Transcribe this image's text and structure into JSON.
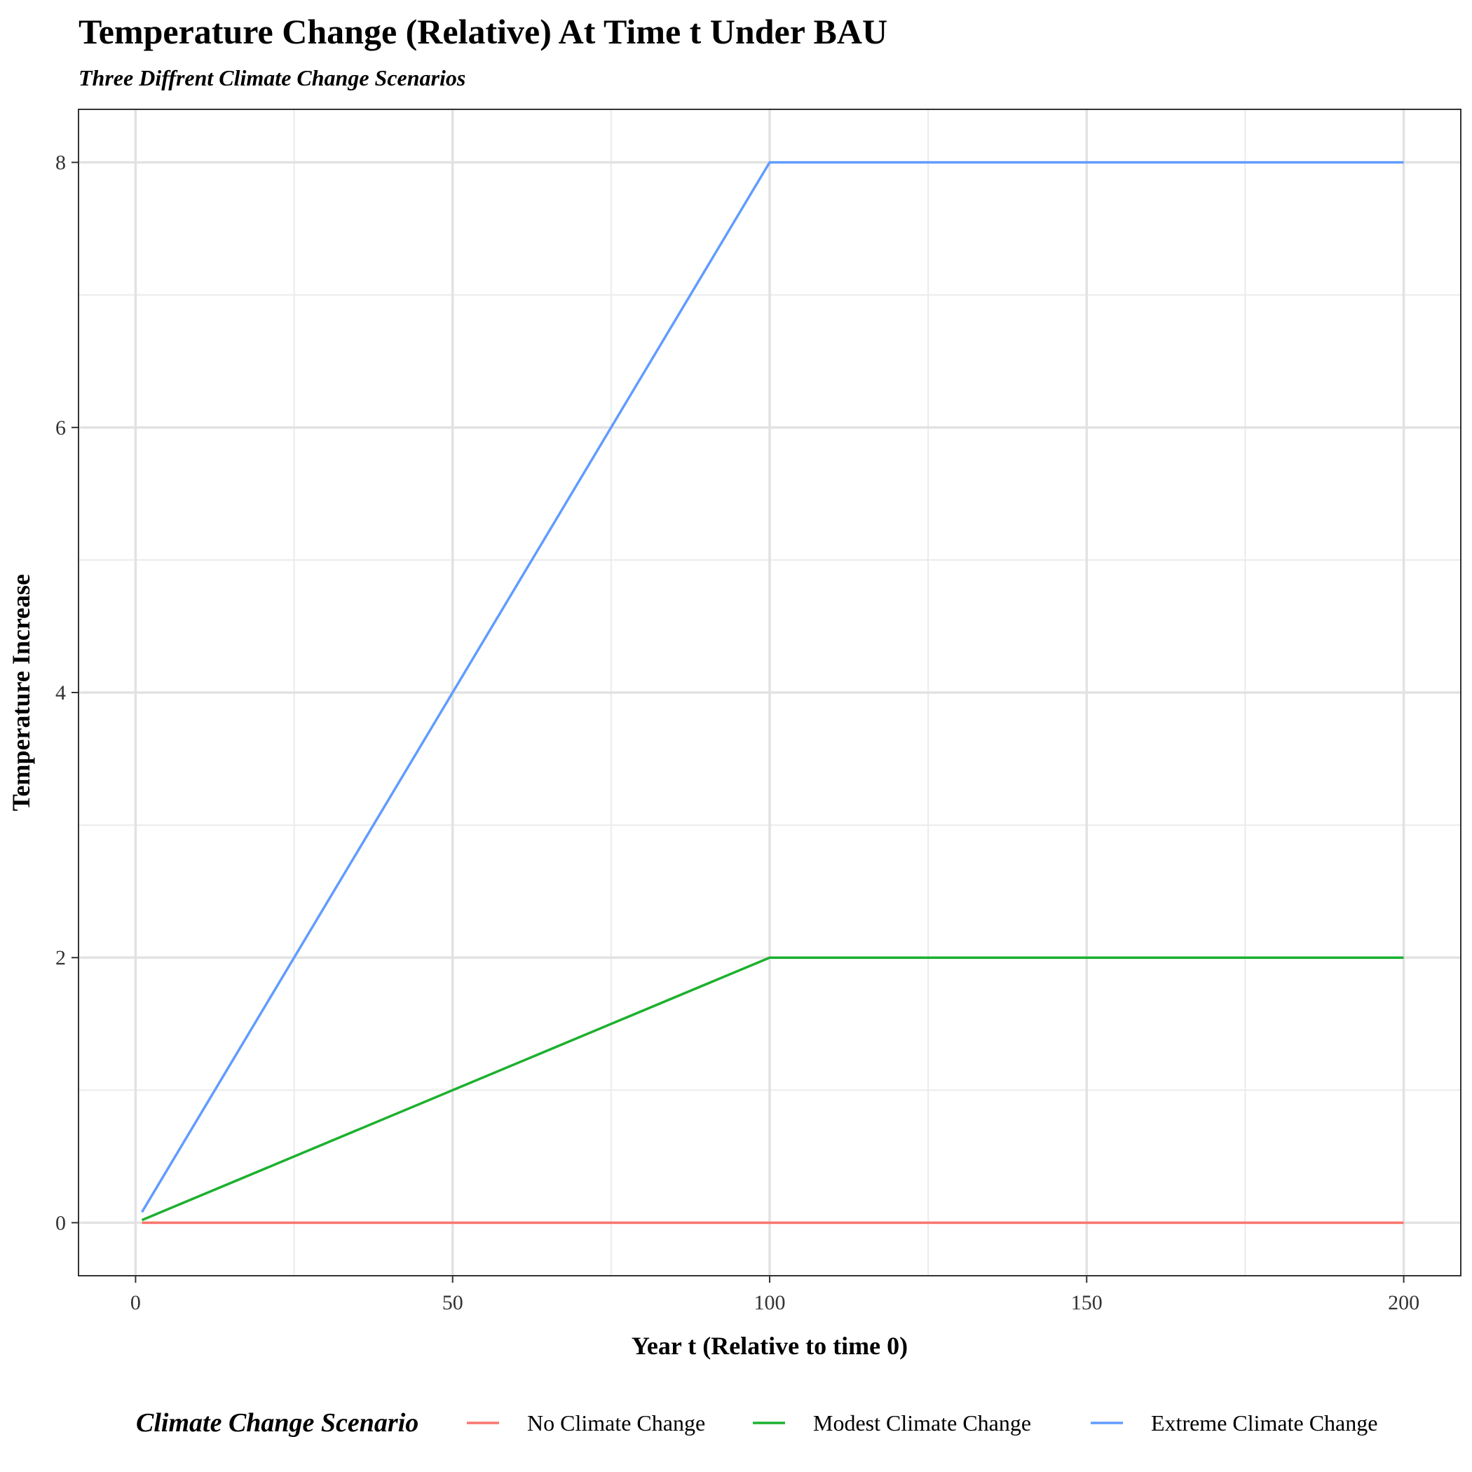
{
  "chart_data": {
    "type": "line",
    "title": "Temperature Change (Relative) At Time t Under BAU",
    "subtitle": "Three Diffrent Climate Change Scenarios",
    "xlabel": "Year t (Relative to time 0)",
    "ylabel": "Temperature Increase",
    "xlim": [
      -9,
      209
    ],
    "ylim": [
      -0.4,
      8.4
    ],
    "x_ticks": [
      0,
      50,
      100,
      150,
      200
    ],
    "x_tick_labels": [
      "0",
      "50",
      "100",
      "150",
      "200"
    ],
    "x_minor_ticks": [
      25,
      75,
      125,
      175
    ],
    "y_ticks": [
      0,
      2,
      4,
      6,
      8
    ],
    "y_tick_labels": [
      "0",
      "2",
      "4",
      "6",
      "8"
    ],
    "y_minor_ticks": [
      1,
      3,
      5,
      7
    ],
    "grid": true,
    "legend": {
      "title": "Climate Change Scenario",
      "position": "bottom"
    },
    "series": [
      {
        "name": "No Climate Change",
        "color": "#F8766D",
        "x": [
          1,
          200
        ],
        "y": [
          0,
          0
        ]
      },
      {
        "name": "Modest Climate Change",
        "color": "#1DB02F",
        "x": [
          1,
          100,
          200
        ],
        "y": [
          0.02,
          2,
          2
        ]
      },
      {
        "name": "Extreme Climate Change",
        "color": "#619CFF",
        "x": [
          1,
          100,
          200
        ],
        "y": [
          0.08,
          8,
          8
        ]
      }
    ]
  }
}
